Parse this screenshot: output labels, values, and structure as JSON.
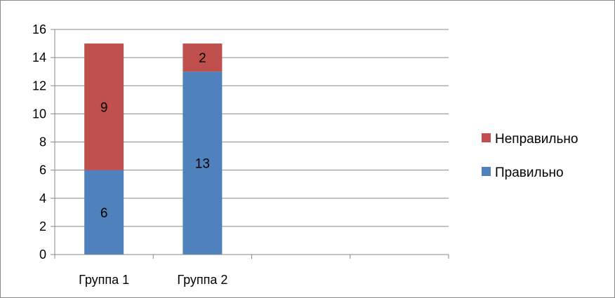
{
  "chart_data": {
    "type": "bar",
    "stacked": true,
    "categories": [
      "Группа 1",
      "Группа 2",
      "",
      ""
    ],
    "series": [
      {
        "name": "Правильно",
        "values": [
          6,
          13,
          null,
          null
        ],
        "color": "#4F81BD"
      },
      {
        "name": "Неправильно",
        "values": [
          9,
          2,
          null,
          null
        ],
        "color": "#C0504D"
      }
    ],
    "ylim": [
      0,
      16
    ],
    "yticks": [
      0,
      2,
      4,
      6,
      8,
      10,
      12,
      14,
      16
    ],
    "grid": true,
    "legend": "right",
    "legend_order": [
      "Неправильно",
      "Правильно"
    ]
  }
}
